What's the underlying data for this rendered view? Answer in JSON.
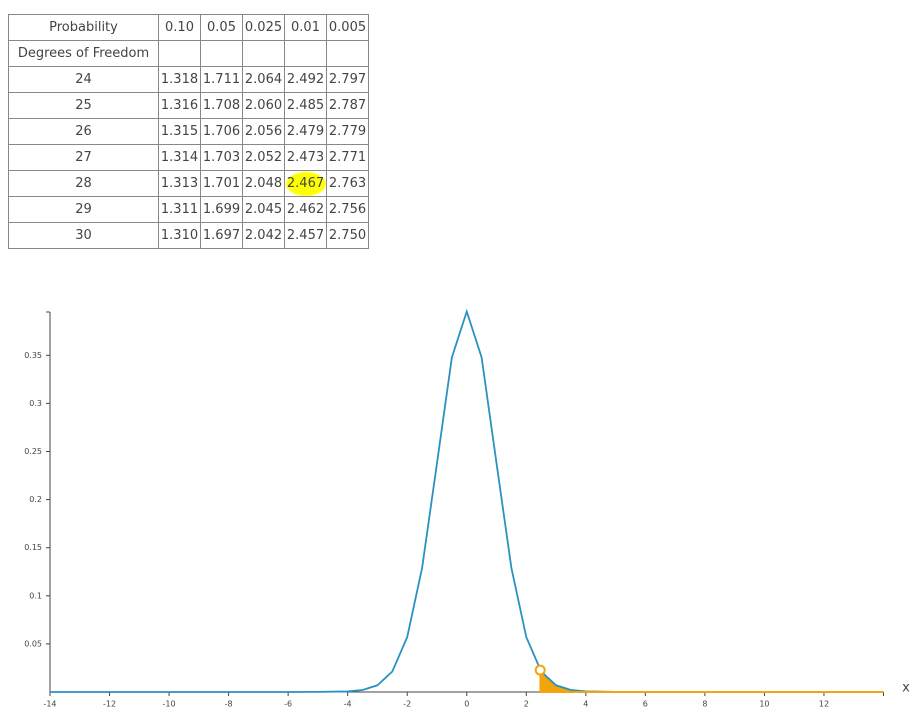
{
  "table": {
    "header": [
      "Probability",
      "0.10",
      "0.05",
      "0.025",
      "0.01",
      "0.005"
    ],
    "rows": [
      [
        "Degrees of Freedom"
      ],
      [
        "24",
        "1.318",
        "1.711",
        "2.064",
        "2.492",
        "2.797"
      ],
      [
        "25",
        "1.316",
        "1.708",
        "2.060",
        "2.485",
        "2.787"
      ],
      [
        "26",
        "1.315",
        "1.706",
        "2.056",
        "2.479",
        "2.779"
      ],
      [
        "27",
        "1.314",
        "1.703",
        "2.052",
        "2.473",
        "2.771"
      ],
      [
        "28",
        "1.313",
        "1.701",
        "2.048",
        "2.467",
        "2.763"
      ],
      [
        "29",
        "1.311",
        "1.699",
        "2.045",
        "2.462",
        "2.756"
      ],
      [
        "30",
        "1.310",
        "1.697",
        "2.042",
        "2.457",
        "2.750"
      ]
    ],
    "highlight_color": "#ffff00"
  },
  "chart_data": {
    "type": "line",
    "x_label": "x",
    "xlim": [
      -14,
      14
    ],
    "xticks": [
      -14,
      -12,
      -10,
      -8,
      -6,
      -4,
      -2,
      0,
      2,
      4,
      6,
      8,
      10,
      12
    ],
    "ylim": [
      0,
      0.395
    ],
    "yticks": [
      0.05,
      0.1,
      0.15,
      0.2,
      0.25,
      0.3,
      0.35
    ],
    "series": [
      {
        "color": "#2a91c2",
        "x": [
          -14,
          -6,
          -5,
          -4,
          -3.5,
          -3,
          -2.5,
          -2,
          -1.5,
          -1,
          -0.5,
          0,
          0.5,
          1,
          1.5,
          2,
          2.5,
          3,
          3.5,
          4,
          5,
          6,
          14
        ],
        "values": [
          0,
          0,
          0.0001,
          0.0006,
          0.0021,
          0.007,
          0.0213,
          0.0571,
          0.1289,
          0.2378,
          0.3477,
          0.3955,
          0.3477,
          0.2378,
          0.1289,
          0.0571,
          0.0213,
          0.007,
          0.0021,
          0.0006,
          0.0001,
          0,
          0
        ]
      }
    ],
    "tail": {
      "color": "#f2a40c",
      "x": [
        2.467,
        2.75,
        3,
        3.5,
        4,
        5,
        6,
        14
      ],
      "values": [
        0.0228,
        0.0125,
        0.007,
        0.0021,
        0.0006,
        0.0001,
        0,
        0
      ]
    }
  }
}
